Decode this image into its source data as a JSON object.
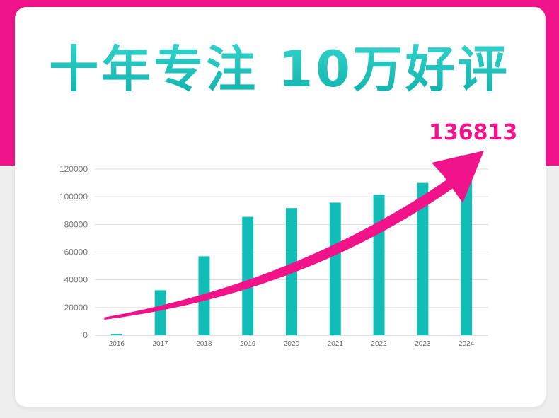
{
  "headline": "十年专注 10万好评",
  "callout_value": "136813",
  "colors": {
    "accent": "#f0138a",
    "bar": "#13bdb7",
    "title": "#16c3bd"
  },
  "chart_data": {
    "type": "bar",
    "title": "",
    "xlabel": "",
    "ylabel": "",
    "categories": [
      "2016",
      "2017",
      "2018",
      "2019",
      "2020",
      "2021",
      "2022",
      "2023",
      "2024"
    ],
    "values": [
      1000,
      32500,
      57000,
      85500,
      91800,
      95800,
      101500,
      110000,
      130000
    ],
    "ylim": [
      0,
      120000
    ],
    "yticks": [
      "0",
      "20000",
      "40000",
      "60000",
      "80000",
      "100000",
      "120000"
    ],
    "grid": true,
    "annotation": "136813"
  }
}
